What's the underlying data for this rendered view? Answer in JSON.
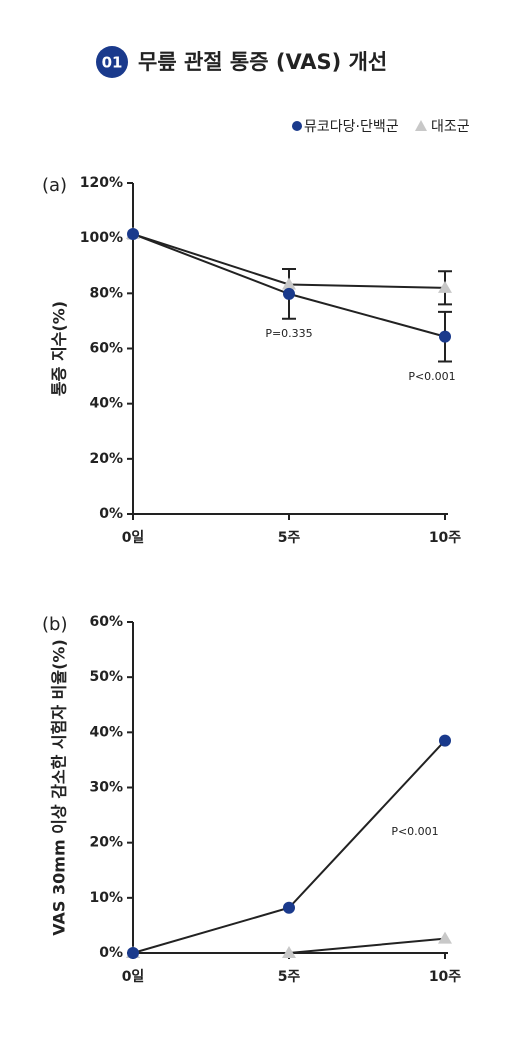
{
  "header": {
    "badge": "01",
    "title": "무릎 관절 통증 (VAS) 개선"
  },
  "chart_data": [
    {
      "type": "line",
      "panel": "(a)",
      "ylabel": "통증 지수(%)",
      "categories": [
        "0일",
        "5주",
        "10주"
      ],
      "series": [
        {
          "name": "뮤코다당·단백군",
          "color": "#1a3a8c",
          "marker": "circle",
          "values": [
            101.5,
            79.8,
            64.3
          ],
          "errors": [
            null,
            9,
            9
          ]
        },
        {
          "name": "대조군",
          "color": "#c8c8c8",
          "marker": "triangle",
          "values": [
            101.5,
            83.2,
            82
          ],
          "errors": [
            null,
            null,
            6
          ]
        }
      ],
      "ylim": [
        0,
        120
      ],
      "yticks": [
        {
          "value": 0,
          "label": "0%"
        },
        {
          "value": 20,
          "label": "20%"
        },
        {
          "value": 40,
          "label": "40%"
        },
        {
          "value": 60,
          "label": "60%"
        },
        {
          "value": 80,
          "label": "80%"
        },
        {
          "value": 100,
          "label": "100%"
        },
        {
          "value": 120,
          "label": "120%"
        }
      ],
      "annotations": [
        "P=0.335",
        "P<0.001"
      ]
    },
    {
      "type": "line",
      "panel": "(b)",
      "ylabel": "VAS 30mm 이상 감소한 시험자 비율(%)",
      "categories": [
        "0일",
        "5주",
        "10주"
      ],
      "series": [
        {
          "color": "#1a3a8c",
          "marker": "circle",
          "values": [
            0,
            8.2,
            38.5
          ]
        },
        {
          "color": "#c8c8c8",
          "marker": "triangle",
          "values": [
            0,
            0,
            2.6
          ]
        }
      ],
      "ylim": [
        0,
        60
      ],
      "yticks": [
        {
          "value": 0,
          "label": "0%"
        },
        {
          "value": 10,
          "label": "10%"
        },
        {
          "value": 20,
          "label": "20%"
        },
        {
          "value": 30,
          "label": "30%"
        },
        {
          "value": 40,
          "label": "40%"
        },
        {
          "value": 50,
          "label": "50%"
        },
        {
          "value": 60,
          "label": "60%"
        }
      ],
      "annotations": [
        "P<0.001"
      ]
    }
  ]
}
